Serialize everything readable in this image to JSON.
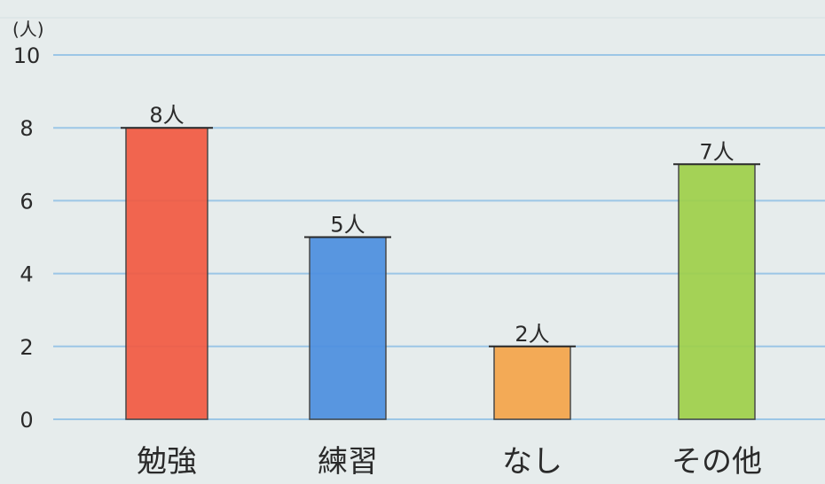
{
  "chart_data": {
    "type": "bar",
    "ylabel": "(人)",
    "ylim": [
      0,
      10
    ],
    "y_ticks": [
      "0",
      "2",
      "4",
      "6",
      "8",
      "10"
    ],
    "categories": [
      "勉強",
      "練習",
      "なし",
      "その他"
    ],
    "values": [
      8,
      5,
      2,
      7
    ],
    "data_labels": [
      "8人",
      "5人",
      "2人",
      "7人"
    ],
    "colors": [
      "#f25a42",
      "#4d8fe0",
      "#f5a54a",
      "#9fd04a"
    ],
    "grid": true
  }
}
